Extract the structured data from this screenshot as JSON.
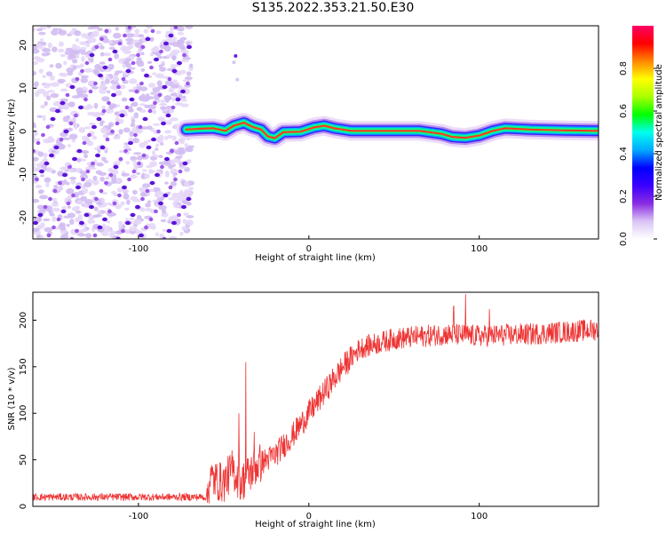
{
  "title": "S135.2022.353.21.50.E30",
  "chart_data": [
    {
      "type": "heatmap",
      "name": "spectrogram",
      "xlabel": "Height of straight line (km)",
      "ylabel": "Frequency (Hz)",
      "xlim": [
        -162,
        170
      ],
      "ylim": [
        -25,
        24.5
      ],
      "xticks": [
        -100,
        0,
        100
      ],
      "yticks": [
        -20,
        -10,
        0,
        10,
        20
      ],
      "colorbar": {
        "label": "Normalized spectral amplitude",
        "range": [
          0.0,
          1.0
        ],
        "ticks": [
          "0.0",
          "0.2",
          "0.4",
          "0.6",
          "0.8"
        ],
        "colormap": [
          "#ffffff",
          "#d9c4f5",
          "#8a2be2",
          "#3b00ff",
          "#0000ff",
          "#00aaff",
          "#00ffee",
          "#00ff00",
          "#aaff00",
          "#ffff00",
          "#ff8800",
          "#ff0000",
          "#ff0066"
        ]
      },
      "ridge_frequency_hz": [
        {
          "x": -72,
          "y": 0.4
        },
        {
          "x": -64,
          "y": 0.6
        },
        {
          "x": -56,
          "y": 0.7
        },
        {
          "x": -49,
          "y": 0.1
        },
        {
          "x": -44,
          "y": 1.3
        },
        {
          "x": -38,
          "y": 2.0
        },
        {
          "x": -33,
          "y": 1.0
        },
        {
          "x": -28,
          "y": 0.4
        },
        {
          "x": -24,
          "y": -1.2
        },
        {
          "x": -20,
          "y": -1.6
        },
        {
          "x": -15,
          "y": -0.2
        },
        {
          "x": -5,
          "y": -0.1
        },
        {
          "x": 3,
          "y": 0.9
        },
        {
          "x": 9,
          "y": 1.3
        },
        {
          "x": 15,
          "y": 0.7
        },
        {
          "x": 25,
          "y": 0.1
        },
        {
          "x": 45,
          "y": 0.1
        },
        {
          "x": 65,
          "y": 0.1
        },
        {
          "x": 78,
          "y": -0.6
        },
        {
          "x": 84,
          "y": -1.3
        },
        {
          "x": 92,
          "y": -1.5
        },
        {
          "x": 100,
          "y": -1.0
        },
        {
          "x": 108,
          "y": 0.1
        },
        {
          "x": 115,
          "y": 0.7
        },
        {
          "x": 130,
          "y": 0.4
        },
        {
          "x": 150,
          "y": 0.2
        },
        {
          "x": 170,
          "y": 0.1
        }
      ],
      "noise_region_x": [
        -162,
        -72
      ]
    },
    {
      "type": "line",
      "name": "snr",
      "xlabel": "Height of straight line (km)",
      "ylabel": "SNR (10 * v/v)",
      "xlim": [
        -162,
        170
      ],
      "ylim": [
        0,
        230
      ],
      "xticks": [
        -100,
        0,
        100
      ],
      "yticks": [
        0,
        50,
        100,
        150,
        200
      ],
      "color": "#ee3333",
      "trend": [
        {
          "x": -162,
          "y": 10
        },
        {
          "x": -60,
          "y": 10
        },
        {
          "x": -58,
          "y": 30
        },
        {
          "x": -50,
          "y": 25
        },
        {
          "x": -45,
          "y": 40
        },
        {
          "x": -40,
          "y": 25
        },
        {
          "x": -35,
          "y": 35
        },
        {
          "x": -30,
          "y": 45
        },
        {
          "x": -20,
          "y": 55
        },
        {
          "x": -10,
          "y": 75
        },
        {
          "x": 0,
          "y": 100
        },
        {
          "x": 10,
          "y": 125
        },
        {
          "x": 20,
          "y": 150
        },
        {
          "x": 30,
          "y": 170
        },
        {
          "x": 50,
          "y": 180
        },
        {
          "x": 80,
          "y": 185
        },
        {
          "x": 100,
          "y": 183
        },
        {
          "x": 130,
          "y": 185
        },
        {
          "x": 170,
          "y": 190
        }
      ],
      "spikes": [
        {
          "x": -37,
          "y": 155
        },
        {
          "x": -41,
          "y": 100
        },
        {
          "x": -32,
          "y": 80
        },
        {
          "x": 92,
          "y": 228
        },
        {
          "x": 85,
          "y": 215
        },
        {
          "x": 106,
          "y": 212
        }
      ]
    }
  ]
}
